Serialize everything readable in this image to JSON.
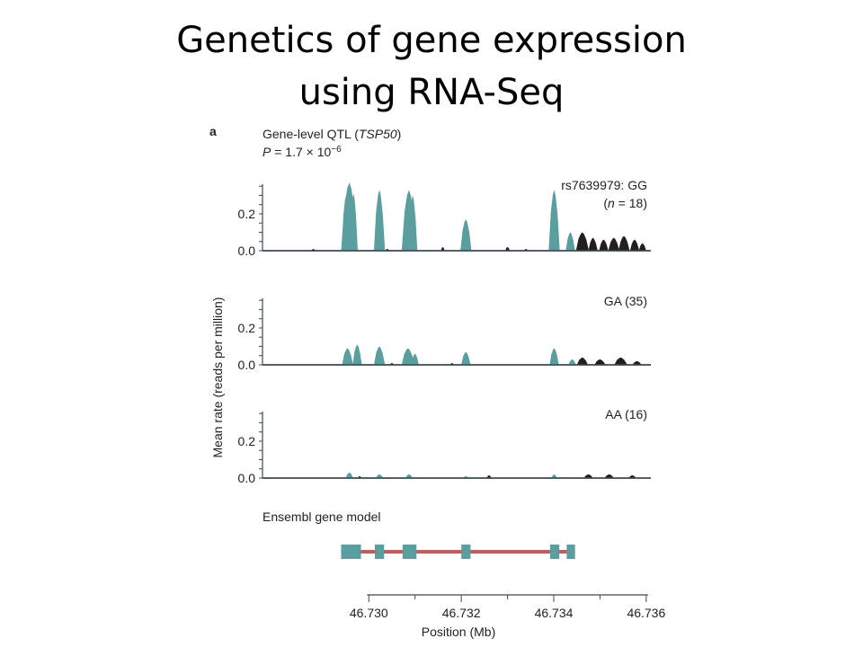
{
  "slide": {
    "title_line1": "Genetics of gene expression",
    "title_line2": "using RNA-Seq"
  },
  "colors": {
    "exon_fill": "#5b9ea0",
    "intron_fill": "#231f20",
    "gene_line": "#c9595a",
    "axis": "#3a4a5a",
    "text": "#222222"
  },
  "chart_data": {
    "type": "area",
    "panel_label": "a",
    "header_line1": "Gene-level QTL (TSP50)",
    "header_line2": "P = 1.7 × 10−6",
    "ylabel": "Mean rate (reads per million)",
    "xlabel": "Position (Mb)",
    "xlim": [
      46.7277,
      46.7361
    ],
    "ylim": [
      0,
      0.38
    ],
    "x_ticks": [
      "46.730",
      "46.732",
      "46.734",
      "46.736"
    ],
    "x_tick_values": [
      46.73,
      46.732,
      46.734,
      46.736
    ],
    "y_ticks": [
      "0.0",
      "0.2"
    ],
    "y_tick_values": [
      0.0,
      0.2
    ],
    "exons": [
      [
        46.7294,
        46.72983
      ],
      [
        46.73013,
        46.73033
      ],
      [
        46.73073,
        46.73103
      ],
      [
        46.732,
        46.7322
      ],
      [
        46.73392,
        46.73412
      ],
      [
        46.73428,
        46.73446
      ]
    ],
    "gene_span": [
      46.7294,
      46.73446
    ],
    "gene_model_label": "Ensembl gene model",
    "panels": [
      {
        "genotype_label": "rs7639979: GG",
        "sample_label": "(n = 18)",
        "peaks": [
          {
            "x": 46.72958,
            "h": 0.37,
            "w": 0.00018,
            "exon": true
          },
          {
            "x": 46.72951,
            "h": 0.3,
            "w": 0.0001,
            "exon": true
          },
          {
            "x": 46.72967,
            "h": 0.31,
            "w": 9e-05,
            "exon": true
          },
          {
            "x": 46.73023,
            "h": 0.33,
            "w": 0.00012,
            "exon": true
          },
          {
            "x": 46.73087,
            "h": 0.33,
            "w": 0.00016,
            "exon": true
          },
          {
            "x": 46.73095,
            "h": 0.3,
            "w": 0.0001,
            "exon": true
          },
          {
            "x": 46.7321,
            "h": 0.17,
            "w": 0.00012,
            "exon": true
          },
          {
            "x": 46.73401,
            "h": 0.33,
            "w": 0.00012,
            "exon": true
          },
          {
            "x": 46.73436,
            "h": 0.1,
            "w": 0.0001,
            "exon": true
          },
          {
            "x": 46.73462,
            "h": 0.1,
            "w": 0.00014,
            "exon": false
          },
          {
            "x": 46.73485,
            "h": 0.07,
            "w": 0.0001,
            "exon": false
          },
          {
            "x": 46.73508,
            "h": 0.06,
            "w": 0.0001,
            "exon": false
          },
          {
            "x": 46.7353,
            "h": 0.07,
            "w": 0.00012,
            "exon": false
          },
          {
            "x": 46.73552,
            "h": 0.08,
            "w": 0.00012,
            "exon": false
          },
          {
            "x": 46.73575,
            "h": 0.06,
            "w": 0.0001,
            "exon": false
          },
          {
            "x": 46.73592,
            "h": 0.04,
            "w": 8e-05,
            "exon": false
          },
          {
            "x": 46.7288,
            "h": 0.01,
            "w": 4e-05,
            "exon": false
          },
          {
            "x": 46.7304,
            "h": 0.01,
            "w": 4e-05,
            "exon": false
          },
          {
            "x": 46.7316,
            "h": 0.02,
            "w": 4e-05,
            "exon": false
          },
          {
            "x": 46.733,
            "h": 0.02,
            "w": 5e-05,
            "exon": false
          },
          {
            "x": 46.7334,
            "h": 0.01,
            "w": 4e-05,
            "exon": false
          }
        ]
      },
      {
        "genotype_label": "GA (35)",
        "sample_label": "",
        "peaks": [
          {
            "x": 46.72954,
            "h": 0.09,
            "w": 0.00012,
            "exon": true
          },
          {
            "x": 46.72975,
            "h": 0.11,
            "w": 0.0001,
            "exon": true
          },
          {
            "x": 46.73023,
            "h": 0.1,
            "w": 0.00012,
            "exon": true
          },
          {
            "x": 46.73085,
            "h": 0.09,
            "w": 0.00014,
            "exon": true
          },
          {
            "x": 46.731,
            "h": 0.06,
            "w": 8e-05,
            "exon": true
          },
          {
            "x": 46.7321,
            "h": 0.07,
            "w": 0.0001,
            "exon": true
          },
          {
            "x": 46.73401,
            "h": 0.09,
            "w": 0.0001,
            "exon": true
          },
          {
            "x": 46.7344,
            "h": 0.03,
            "w": 8e-05,
            "exon": true
          },
          {
            "x": 46.73462,
            "h": 0.04,
            "w": 0.00012,
            "exon": false
          },
          {
            "x": 46.735,
            "h": 0.03,
            "w": 0.00012,
            "exon": false
          },
          {
            "x": 46.73545,
            "h": 0.04,
            "w": 0.00014,
            "exon": false
          },
          {
            "x": 46.7358,
            "h": 0.02,
            "w": 0.0001,
            "exon": false
          },
          {
            "x": 46.7305,
            "h": 0.01,
            "w": 4e-05,
            "exon": false
          },
          {
            "x": 46.7318,
            "h": 0.01,
            "w": 4e-05,
            "exon": false
          }
        ]
      },
      {
        "genotype_label": "AA (16)",
        "sample_label": "",
        "peaks": [
          {
            "x": 46.72958,
            "h": 0.03,
            "w": 8e-05,
            "exon": true
          },
          {
            "x": 46.73023,
            "h": 0.02,
            "w": 8e-05,
            "exon": true
          },
          {
            "x": 46.73087,
            "h": 0.02,
            "w": 8e-05,
            "exon": true
          },
          {
            "x": 46.7321,
            "h": 0.01,
            "w": 6e-05,
            "exon": true
          },
          {
            "x": 46.73401,
            "h": 0.02,
            "w": 6e-05,
            "exon": true
          },
          {
            "x": 46.7326,
            "h": 0.015,
            "w": 5e-05,
            "exon": false
          },
          {
            "x": 46.73475,
            "h": 0.02,
            "w": 0.0001,
            "exon": false
          },
          {
            "x": 46.7352,
            "h": 0.02,
            "w": 0.0001,
            "exon": false
          },
          {
            "x": 46.7357,
            "h": 0.015,
            "w": 8e-05,
            "exon": false
          },
          {
            "x": 46.7298,
            "h": 0.01,
            "w": 4e-05,
            "exon": false
          }
        ]
      }
    ]
  }
}
